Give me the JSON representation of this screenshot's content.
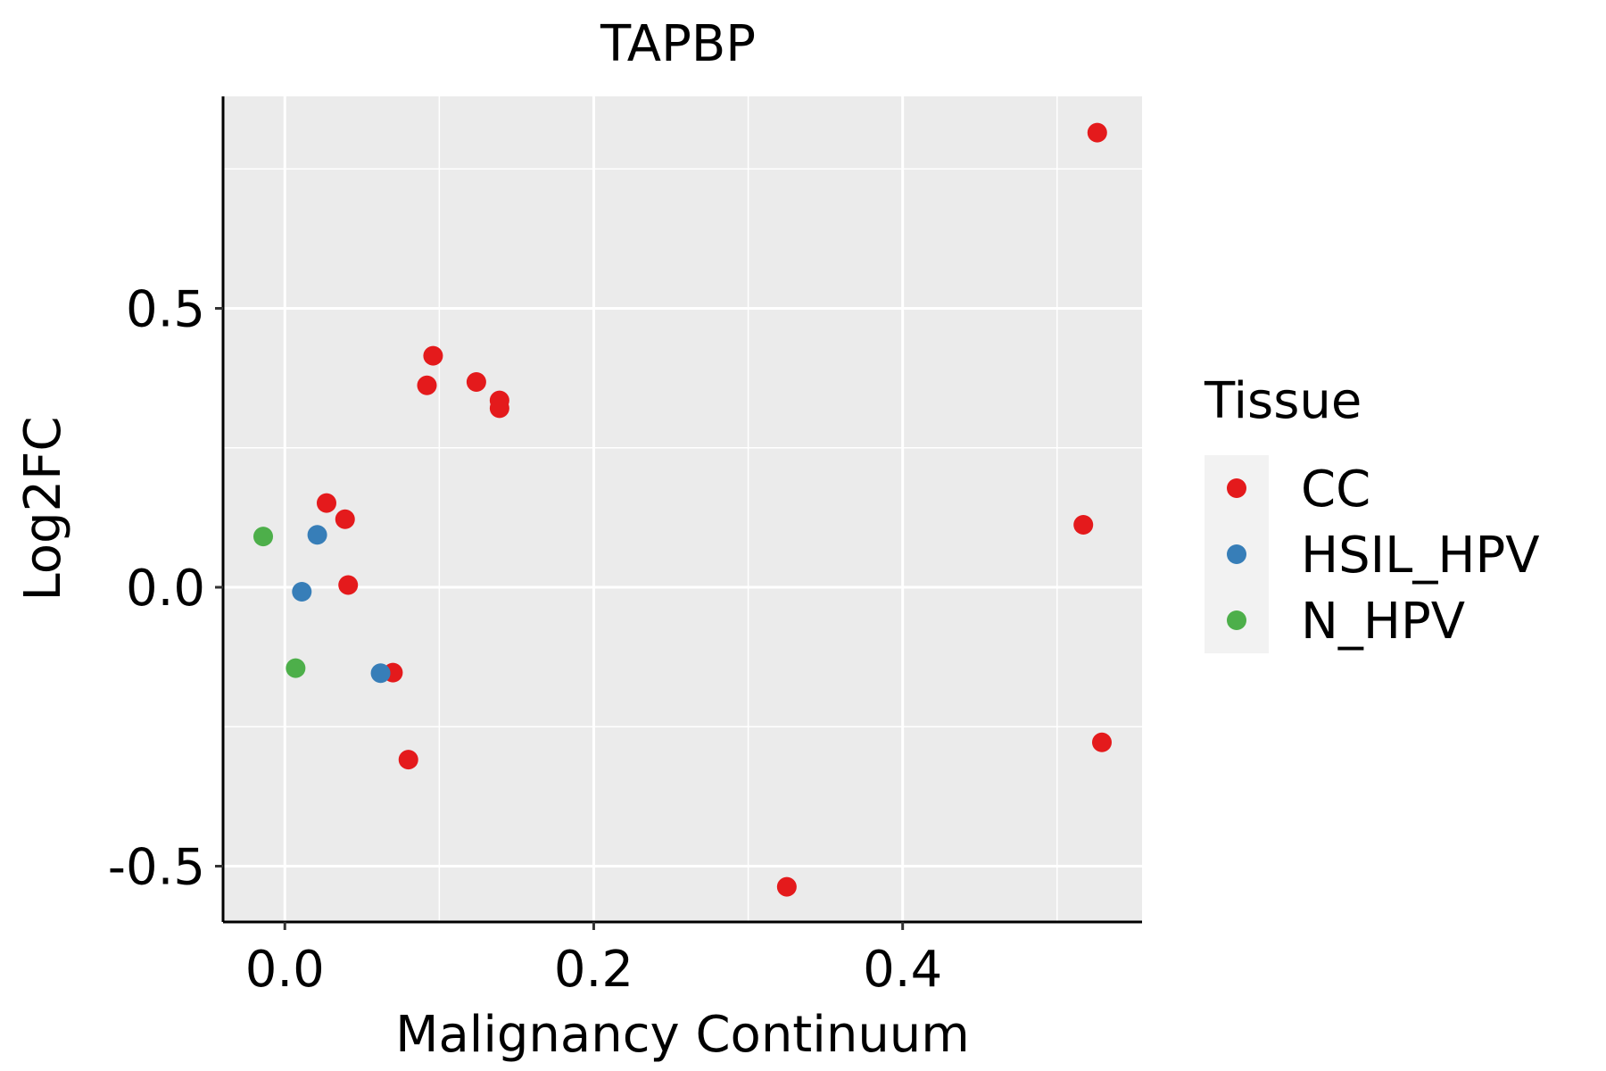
{
  "chart_data": {
    "type": "scatter",
    "title": "TAPBP",
    "xlabel": "Malignancy Continuum",
    "ylabel": "Log2FC",
    "xlim": [
      -0.04,
      0.555
    ],
    "ylim": [
      -0.6,
      0.88
    ],
    "x_ticks": [
      0.0,
      0.2,
      0.4
    ],
    "x_tick_labels": [
      "0.0",
      "0.2",
      "0.4"
    ],
    "x_minor": [
      0.1,
      0.3,
      0.5
    ],
    "y_ticks": [
      -0.5,
      0.0,
      0.5
    ],
    "y_tick_labels": [
      "-0.5",
      "0.0",
      "0.5"
    ],
    "y_minor": [
      -0.25,
      0.25,
      0.75
    ],
    "grid": true,
    "background": "#EBEBEB",
    "legend": {
      "title": "Tissue",
      "position": "right",
      "entries": [
        {
          "label": "CC",
          "color": "#E41A1C"
        },
        {
          "label": "HSIL_HPV",
          "color": "#377EB8"
        },
        {
          "label": "N_HPV",
          "color": "#4DAF4A"
        }
      ]
    },
    "series": [
      {
        "name": "CC",
        "color": "#E41A1C",
        "points": [
          {
            "x": 0.526,
            "y": 0.815
          },
          {
            "x": 0.096,
            "y": 0.415
          },
          {
            "x": 0.124,
            "y": 0.368
          },
          {
            "x": 0.092,
            "y": 0.362
          },
          {
            "x": 0.139,
            "y": 0.335
          },
          {
            "x": 0.139,
            "y": 0.321
          },
          {
            "x": 0.027,
            "y": 0.151
          },
          {
            "x": 0.039,
            "y": 0.122
          },
          {
            "x": 0.517,
            "y": 0.112
          },
          {
            "x": 0.041,
            "y": 0.004
          },
          {
            "x": 0.07,
            "y": -0.153
          },
          {
            "x": 0.08,
            "y": -0.309
          },
          {
            "x": 0.529,
            "y": -0.278
          },
          {
            "x": 0.325,
            "y": -0.537
          }
        ]
      },
      {
        "name": "HSIL_HPV",
        "color": "#377EB8",
        "points": [
          {
            "x": 0.021,
            "y": 0.094
          },
          {
            "x": 0.011,
            "y": -0.008
          },
          {
            "x": 0.062,
            "y": -0.154
          }
        ]
      },
      {
        "name": "N_HPV",
        "color": "#4DAF4A",
        "points": [
          {
            "x": -0.014,
            "y": 0.091
          },
          {
            "x": 0.007,
            "y": -0.145
          }
        ]
      }
    ]
  }
}
